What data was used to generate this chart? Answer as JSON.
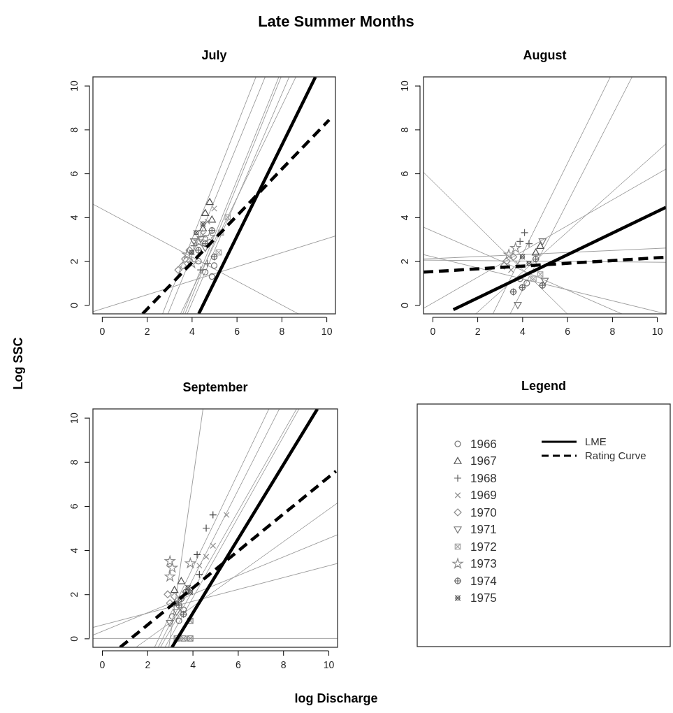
{
  "chart_data": [
    {
      "type": "scatter",
      "title": "July",
      "ylabel": "Log SSC",
      "annotations": [
        "Late Summer Months"
      ],
      "legend": "bottom right",
      "legend_title": "Legend",
      "xlim": [
        -0.4,
        10.4
      ],
      "ylim": [
        -0.4,
        10.4
      ],
      "xticks": [
        0,
        2,
        4,
        6,
        8,
        10
      ],
      "yticks": [
        0,
        2,
        4,
        6,
        8,
        10
      ],
      "grid": false,
      "series": [
        {
          "type": "line",
          "color": "#a0a0a0",
          "x": [
            -0.4,
            8.75
          ],
          "values": [
            4.6,
            -0.4
          ]
        },
        {
          "type": "line",
          "color": "#a0a0a0",
          "x": [
            -0.4,
            10.4
          ],
          "values": [
            -0.3,
            3.15
          ]
        },
        {
          "type": "line",
          "color": "#a0a0a0",
          "x": [
            2.7,
            6.86
          ],
          "values": [
            -0.4,
            10.4
          ]
        },
        {
          "type": "line",
          "color": "#a0a0a0",
          "x": [
            2.94,
            7.27
          ],
          "values": [
            -0.4,
            10.4
          ]
        },
        {
          "type": "line",
          "color": "#a0a0a0",
          "x": [
            3.6,
            7.88
          ],
          "values": [
            -0.4,
            10.4
          ]
        },
        {
          "type": "line",
          "color": "#a0a0a0",
          "x": [
            3.7,
            7.98
          ],
          "values": [
            -0.4,
            10.4
          ]
        },
        {
          "type": "line",
          "color": "#a0a0a0",
          "x": [
            3.8,
            8.34
          ],
          "values": [
            -0.4,
            10.4
          ]
        },
        {
          "type": "line",
          "color": "#a0a0a0",
          "x": [
            3.5,
            8.64
          ],
          "values": [
            -0.4,
            10.4
          ]
        },
        {
          "type": "scatter",
          "name": "1966",
          "marker": "circle",
          "color": "#707070",
          "x": [
            4.6,
            4.9,
            4.3,
            5.0
          ],
          "values": [
            1.5,
            1.3,
            2.0,
            1.8
          ]
        },
        {
          "type": "scatter",
          "name": "1967",
          "marker": "triangle",
          "color": "#505050",
          "x": [
            4.8,
            4.6,
            4.9,
            4.5
          ],
          "values": [
            4.7,
            4.2,
            3.9,
            3.5
          ]
        },
        {
          "type": "scatter",
          "name": "1968",
          "marker": "cross",
          "color": "#606060",
          "x": [
            4.4,
            4.7,
            4.1
          ],
          "values": [
            1.6,
            1.9,
            2.7
          ]
        },
        {
          "type": "scatter",
          "name": "1969",
          "marker": "x",
          "color": "#909090",
          "x": [
            4.7,
            4.5,
            5.0
          ],
          "values": [
            3.8,
            3.2,
            4.4
          ]
        },
        {
          "type": "scatter",
          "name": "1970",
          "marker": "diamond",
          "color": "#8c8c8c",
          "x": [
            3.7,
            3.9,
            3.4,
            3.6
          ],
          "values": [
            2.1,
            2.5,
            1.6,
            1.8
          ]
        },
        {
          "type": "scatter",
          "name": "1971",
          "marker": "triangle-down",
          "color": "#787878",
          "x": [
            4.1,
            4.4,
            4.6
          ],
          "values": [
            2.9,
            3.0,
            2.6
          ]
        },
        {
          "type": "scatter",
          "name": "1972",
          "marker": "square",
          "color": "#a8a8a8",
          "x": [
            5.6,
            5.3,
            5.2
          ],
          "values": [
            4.0,
            3.3,
            2.4
          ]
        },
        {
          "type": "scatter",
          "name": "1973",
          "marker": "star",
          "color": "#8a8a8a",
          "x": [
            3.8,
            4.0,
            4.3,
            4.8
          ],
          "values": [
            2.3,
            1.9,
            2.9,
            3.1
          ]
        },
        {
          "type": "scatter",
          "name": "1974",
          "marker": "circle-plus",
          "color": "#6a6a6a",
          "x": [
            4.3,
            4.6,
            4.9,
            5.0
          ],
          "values": [
            2.5,
            2.8,
            3.4,
            2.2
          ]
        },
        {
          "type": "scatter",
          "name": "1975",
          "marker": "circle-x",
          "color": "#5a5a5a",
          "x": [
            4.2,
            4.5,
            4.0
          ],
          "values": [
            3.3,
            3.7,
            2.4
          ]
        },
        {
          "type": "line",
          "name": "LME",
          "color": "#000000",
          "x": [
            4.31,
            9.51
          ],
          "values": [
            -0.4,
            10.4
          ]
        },
        {
          "type": "line",
          "name": "Rating Curve",
          "color": "#000000",
          "line_style": "dashed",
          "x": [
            1.81,
            10.12
          ],
          "values": [
            -0.4,
            8.44
          ]
        }
      ]
    },
    {
      "type": "scatter",
      "title": "August",
      "xlim": [
        -0.4,
        10.4
      ],
      "ylim": [
        -0.4,
        10.4
      ],
      "xticks": [
        0,
        2,
        4,
        6,
        8,
        10
      ],
      "yticks": [
        0,
        2,
        4,
        6,
        8,
        10
      ],
      "grid": false,
      "series": [
        {
          "type": "line",
          "color": "#a0a0a0",
          "x": [
            -0.4,
            6.0
          ],
          "values": [
            6.05,
            -0.4
          ]
        },
        {
          "type": "line",
          "color": "#a0a0a0",
          "x": [
            -0.4,
            8.43
          ],
          "values": [
            3.55,
            -0.4
          ]
        },
        {
          "type": "line",
          "color": "#a0a0a0",
          "x": [
            -0.4,
            10.4
          ],
          "values": [
            2.3,
            -0.4
          ]
        },
        {
          "type": "line",
          "color": "#a0a0a0",
          "x": [
            -0.4,
            10.4
          ],
          "values": [
            2.1,
            2.6
          ]
        },
        {
          "type": "line",
          "color": "#a0a0a0",
          "x": [
            -0.4,
            10.4
          ],
          "values": [
            2.05,
            1.95
          ]
        },
        {
          "type": "line",
          "color": "#a0a0a0",
          "x": [
            -0.4,
            10.4
          ],
          "values": [
            -0.15,
            6.2
          ]
        },
        {
          "type": "line",
          "color": "#a0a0a0",
          "x": [
            1.92,
            10.4
          ],
          "values": [
            -0.4,
            7.35
          ]
        },
        {
          "type": "line",
          "color": "#a0a0a0",
          "x": [
            2.69,
            7.92
          ],
          "values": [
            -0.4,
            10.4
          ]
        },
        {
          "type": "line",
          "color": "#a0a0a0",
          "x": [
            3.46,
            8.89
          ],
          "values": [
            -0.4,
            10.4
          ]
        },
        {
          "type": "scatter",
          "marker": "circle",
          "color": "#707070",
          "x": [
            3.9,
            4.2
          ],
          "values": [
            1.2,
            1.0
          ]
        },
        {
          "type": "scatter",
          "marker": "triangle",
          "color": "#505050",
          "x": [
            4.8,
            4.6
          ],
          "values": [
            2.7,
            2.4
          ]
        },
        {
          "type": "scatter",
          "marker": "cross",
          "color": "#606060",
          "x": [
            4.1,
            3.9,
            4.3
          ],
          "values": [
            3.3,
            2.9,
            2.8
          ]
        },
        {
          "type": "scatter",
          "marker": "x",
          "color": "#909090",
          "x": [
            3.5,
            3.8
          ],
          "values": [
            1.6,
            1.9
          ]
        },
        {
          "type": "scatter",
          "marker": "diamond",
          "color": "#8c8c8c",
          "x": [
            3.3,
            3.6,
            3.2
          ],
          "values": [
            2.0,
            2.2,
            1.8
          ]
        },
        {
          "type": "scatter",
          "marker": "triangle-down",
          "color": "#787878",
          "x": [
            3.8,
            4.9,
            5.0
          ],
          "values": [
            0.0,
            2.9,
            1.1
          ]
        },
        {
          "type": "scatter",
          "marker": "square",
          "color": "#a8a8a8",
          "x": [
            4.5,
            4.8
          ],
          "values": [
            1.2,
            1.4
          ]
        },
        {
          "type": "scatter",
          "marker": "star",
          "color": "#8a8a8a",
          "x": [
            3.7,
            3.4
          ],
          "values": [
            2.6,
            2.3
          ]
        },
        {
          "type": "scatter",
          "marker": "circle-plus",
          "color": "#6a6a6a",
          "x": [
            4.9,
            3.6,
            4.0,
            4.6
          ],
          "values": [
            0.9,
            0.6,
            0.8,
            2.1
          ]
        },
        {
          "type": "scatter",
          "marker": "circle-x",
          "color": "#5a5a5a",
          "x": [
            4.0,
            4.3
          ],
          "values": [
            2.2,
            1.9
          ]
        },
        {
          "type": "line",
          "color": "#000000",
          "x": [
            0.93,
            10.4
          ],
          "values": [
            -0.21,
            4.46
          ]
        },
        {
          "type": "line",
          "color": "#000000",
          "line_style": "dashed",
          "x": [
            -0.4,
            10.4
          ],
          "values": [
            1.5,
            2.18
          ]
        }
      ]
    },
    {
      "type": "scatter",
      "title": "September",
      "xlabel": "log Discharge",
      "xlim": [
        -0.4,
        10.4
      ],
      "ylim": [
        -0.4,
        10.4
      ],
      "xticks": [
        0,
        2,
        4,
        6,
        8,
        10
      ],
      "yticks": [
        0,
        2,
        4,
        6,
        8,
        10
      ],
      "grid": false,
      "series": [
        {
          "type": "line",
          "color": "#a0a0a0",
          "x": [
            -0.4,
            10.4
          ],
          "values": [
            0,
            0
          ]
        },
        {
          "type": "line",
          "color": "#a0a0a0",
          "x": [
            -0.4,
            10.4
          ],
          "values": [
            0.5,
            3.4
          ]
        },
        {
          "type": "line",
          "color": "#a0a0a0",
          "x": [
            -0.4,
            10.4
          ],
          "values": [
            0.15,
            4.7
          ]
        },
        {
          "type": "line",
          "color": "#a0a0a0",
          "x": [
            1.5,
            10.4
          ],
          "values": [
            -0.4,
            6.14
          ]
        },
        {
          "type": "line",
          "color": "#a0a0a0",
          "x": [
            2.95,
            4.46
          ],
          "values": [
            -0.4,
            10.4
          ]
        },
        {
          "type": "line",
          "color": "#a0a0a0",
          "x": [
            2.32,
            7.37
          ],
          "values": [
            -0.4,
            10.4
          ]
        },
        {
          "type": "line",
          "color": "#a0a0a0",
          "x": [
            2.48,
            7.83
          ],
          "values": [
            -0.4,
            10.4
          ]
        },
        {
          "type": "line",
          "color": "#a0a0a0",
          "x": [
            2.58,
            8.59
          ],
          "values": [
            -0.4,
            10.4
          ]
        },
        {
          "type": "line",
          "color": "#a0a0a0",
          "x": [
            2.78,
            8.7
          ],
          "values": [
            -0.4,
            10.4
          ]
        },
        {
          "type": "scatter",
          "marker": "circle",
          "color": "#707070",
          "x": [
            3.1,
            3.4,
            3.6
          ],
          "values": [
            1.0,
            0.8,
            1.3
          ]
        },
        {
          "type": "scatter",
          "marker": "triangle",
          "color": "#505050",
          "x": [
            3.2,
            3.5
          ],
          "values": [
            2.2,
            2.6
          ]
        },
        {
          "type": "scatter",
          "marker": "cross",
          "color": "#404040",
          "x": [
            4.9,
            4.6,
            4.2,
            4.3
          ],
          "values": [
            5.6,
            5.0,
            3.8,
            2.9
          ]
        },
        {
          "type": "scatter",
          "marker": "x",
          "color": "#909090",
          "x": [
            5.5,
            4.9,
            4.6,
            4.3
          ],
          "values": [
            5.6,
            4.2,
            3.7,
            3.3
          ]
        },
        {
          "type": "scatter",
          "marker": "diamond",
          "color": "#8c8c8c",
          "x": [
            3.0,
            3.2,
            2.9
          ],
          "values": [
            1.6,
            1.9,
            2.0
          ]
        },
        {
          "type": "scatter",
          "marker": "triangle-down",
          "color": "#787878",
          "x": [
            3.3,
            3.0
          ],
          "values": [
            1.2,
            0.7
          ]
        },
        {
          "type": "scatter",
          "marker": "square",
          "color": "#808080",
          "x": [
            3.9,
            3.6,
            3.9,
            3.3
          ],
          "values": [
            0.8,
            0.0,
            0.0,
            0.0
          ]
        },
        {
          "type": "scatter",
          "marker": "star",
          "color": "#8a8a8a",
          "x": [
            3.0,
            3.0,
            3.1,
            3.9
          ],
          "values": [
            3.5,
            2.8,
            3.2,
            3.4
          ]
        },
        {
          "type": "scatter",
          "marker": "circle-plus",
          "color": "#6a6a6a",
          "x": [
            3.5,
            3.7,
            3.4,
            3.6
          ],
          "values": [
            1.8,
            2.1,
            1.5,
            1.1
          ]
        },
        {
          "type": "scatter",
          "marker": "circle-x",
          "color": "#5a5a5a",
          "x": [
            3.8,
            3.9,
            3.3
          ],
          "values": [
            2.3,
            2.1,
            1.6
          ]
        },
        {
          "type": "line",
          "color": "#000000",
          "x": [
            3.09,
            9.51
          ],
          "values": [
            -0.4,
            10.4
          ]
        },
        {
          "type": "line",
          "color": "#000000",
          "line_style": "dashed",
          "x": [
            0.8,
            10.33
          ],
          "values": [
            -0.4,
            7.58
          ]
        }
      ]
    }
  ]
}
